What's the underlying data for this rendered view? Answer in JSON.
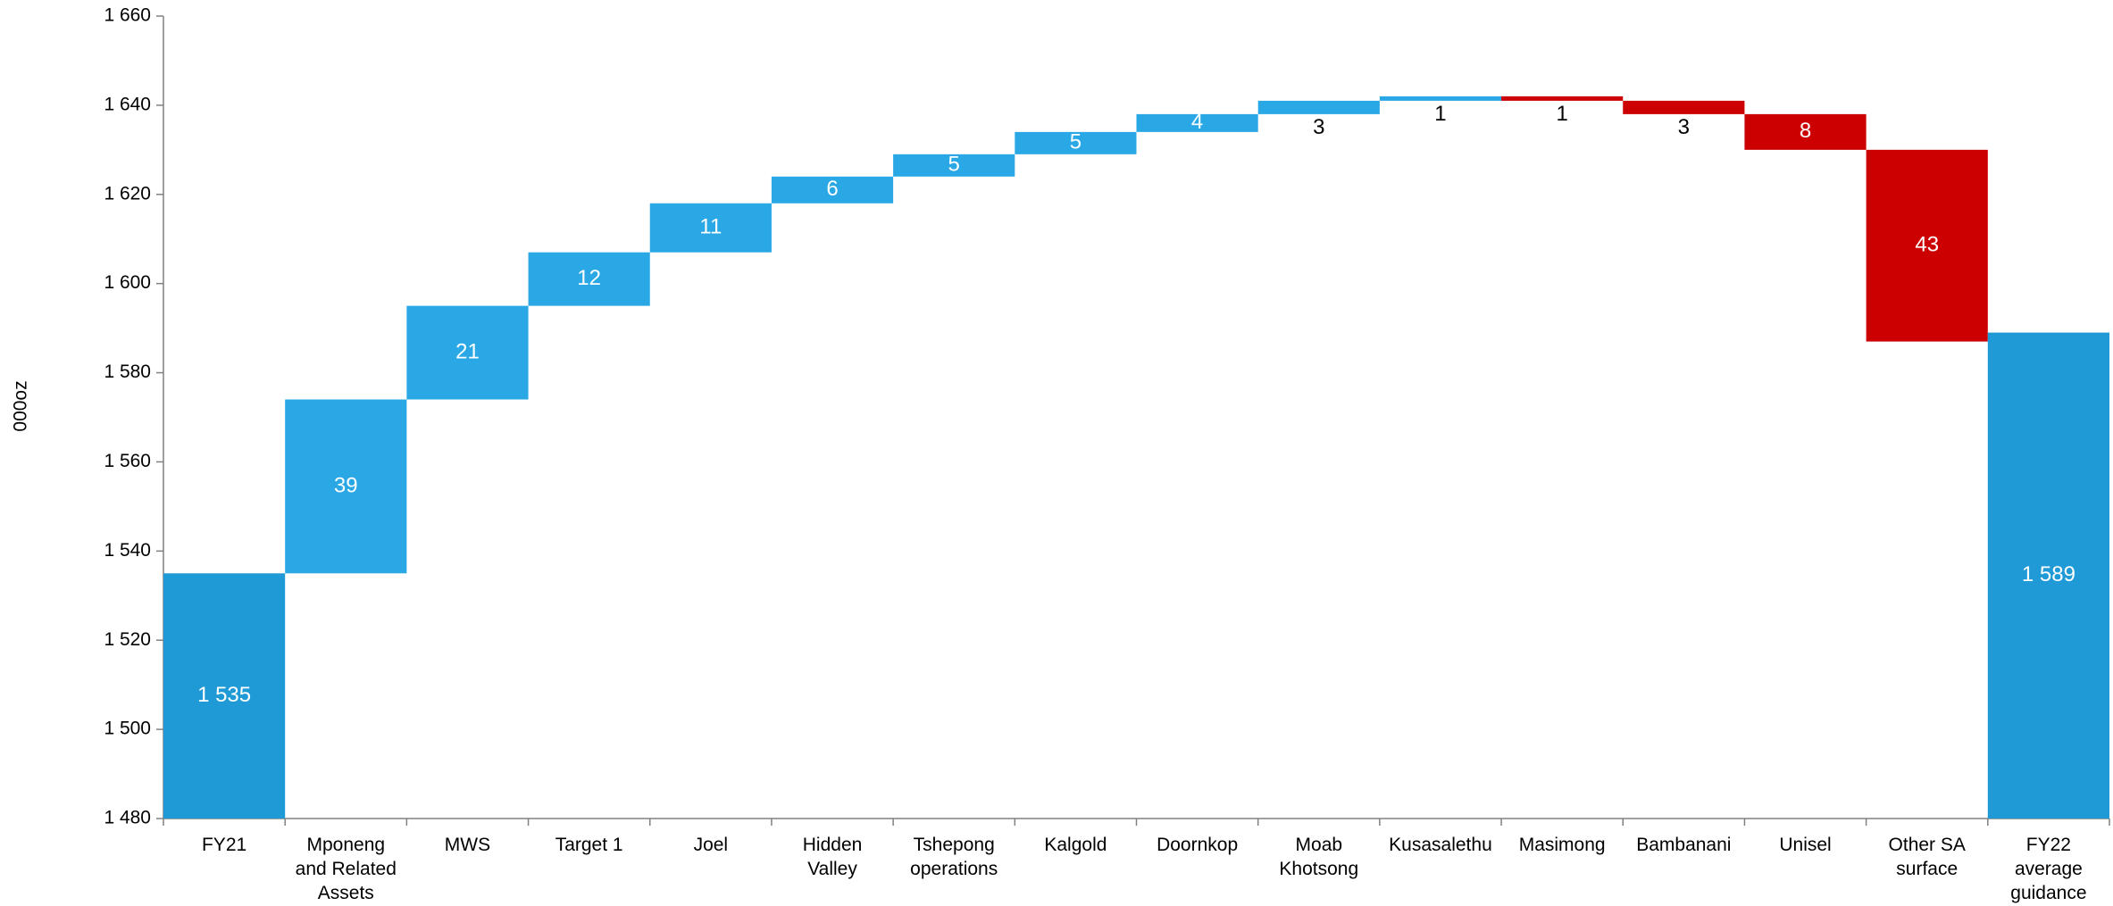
{
  "chart_data": {
    "type": "waterfall",
    "y_label": "000oz",
    "categories": [
      "FY21",
      "Mponeng and Related Assets",
      "MWS",
      "Target 1",
      "Joel",
      "Hidden Valley",
      "Tshepong operations",
      "Kalgold",
      "Doornkop",
      "Moab Khotsong",
      "Kusasalethu",
      "Masimong",
      "Bambanani",
      "Unisel",
      "Other SA surface",
      "FY22 average guidance"
    ],
    "values": [
      1535,
      39,
      21,
      12,
      11,
      6,
      5,
      5,
      4,
      3,
      1,
      1,
      3,
      8,
      43,
      1589
    ],
    "value_labels": [
      "1 535",
      "39",
      "21",
      "12",
      "11",
      "6",
      "5",
      "5",
      "4",
      "3",
      "1",
      "1",
      "3",
      "8",
      "43",
      "1 589"
    ],
    "measures": [
      "total",
      "increase",
      "increase",
      "increase",
      "increase",
      "increase",
      "increase",
      "increase",
      "increase",
      "increase",
      "increase",
      "decrease",
      "decrease",
      "decrease",
      "decrease",
      "total"
    ],
    "colors": {
      "total": "#1f9ad6",
      "increase": "#29a8e5",
      "decrease": "#cc0000"
    },
    "ylim": [
      1480,
      1660
    ],
    "yticks": [
      {
        "value": 1480,
        "label": "1 480"
      },
      {
        "value": 1500,
        "label": "1 500"
      },
      {
        "value": 1520,
        "label": "1 520"
      },
      {
        "value": 1540,
        "label": "1 540"
      },
      {
        "value": 1560,
        "label": "1 560"
      },
      {
        "value": 1580,
        "label": "1 580"
      },
      {
        "value": 1600,
        "label": "1 600"
      },
      {
        "value": 1620,
        "label": "1 620"
      },
      {
        "value": 1640,
        "label": "1 640"
      },
      {
        "value": 1660,
        "label": "1 660"
      }
    ],
    "grid": false
  }
}
